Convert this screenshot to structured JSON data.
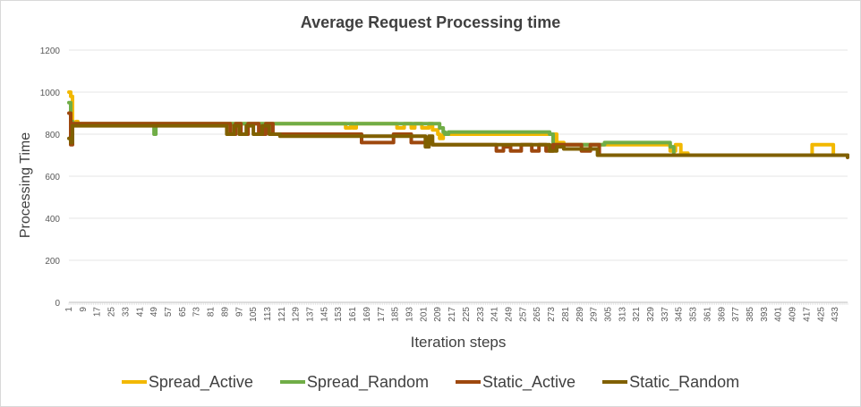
{
  "chart_data": {
    "type": "line",
    "title": "Average Request Processing time",
    "xlabel": "Iteration steps",
    "ylabel": "Processing Time",
    "ylim": [
      0,
      1200
    ],
    "xlim": [
      1,
      440
    ],
    "y_ticks": [
      0,
      200,
      400,
      600,
      800,
      1000,
      1200
    ],
    "x_ticks": [
      1,
      9,
      17,
      25,
      33,
      41,
      49,
      57,
      65,
      73,
      81,
      89,
      97,
      105,
      113,
      121,
      129,
      137,
      145,
      153,
      161,
      169,
      177,
      185,
      193,
      201,
      209,
      217,
      225,
      233,
      241,
      249,
      257,
      265,
      273,
      281,
      289,
      297,
      305,
      313,
      321,
      329,
      337,
      345,
      353,
      361,
      369,
      377,
      385,
      393,
      401,
      409,
      417,
      425,
      433
    ],
    "grid": true,
    "legend_position": "bottom",
    "series": [
      {
        "name": "Spread_Active",
        "color": "#f2b800",
        "points": [
          [
            1,
            1000
          ],
          [
            2,
            980
          ],
          [
            3,
            850
          ],
          [
            5,
            860
          ],
          [
            6,
            850
          ],
          [
            120,
            850
          ],
          [
            155,
            850
          ],
          [
            157,
            830
          ],
          [
            160,
            850
          ],
          [
            161,
            830
          ],
          [
            163,
            850
          ],
          [
            185,
            850
          ],
          [
            186,
            830
          ],
          [
            190,
            850
          ],
          [
            194,
            830
          ],
          [
            196,
            850
          ],
          [
            200,
            830
          ],
          [
            204,
            850
          ],
          [
            206,
            820
          ],
          [
            209,
            800
          ],
          [
            210,
            780
          ],
          [
            212,
            800
          ],
          [
            273,
            800
          ],
          [
            276,
            760
          ],
          [
            280,
            750
          ],
          [
            338,
            750
          ],
          [
            340,
            720
          ],
          [
            343,
            750
          ],
          [
            346,
            710
          ],
          [
            350,
            700
          ],
          [
            416,
            700
          ],
          [
            420,
            750
          ],
          [
            428,
            750
          ],
          [
            432,
            700
          ],
          [
            440,
            700
          ]
        ]
      },
      {
        "name": "Spread_Random",
        "color": "#70ad47",
        "points": [
          [
            1,
            950
          ],
          [
            2,
            860
          ],
          [
            3,
            850
          ],
          [
            48,
            850
          ],
          [
            49,
            800
          ],
          [
            50,
            850
          ],
          [
            120,
            850
          ],
          [
            208,
            850
          ],
          [
            210,
            830
          ],
          [
            212,
            810
          ],
          [
            213,
            800
          ],
          [
            215,
            810
          ],
          [
            272,
            800
          ],
          [
            274,
            750
          ],
          [
            300,
            750
          ],
          [
            303,
            760
          ],
          [
            338,
            760
          ],
          [
            340,
            740
          ],
          [
            342,
            700
          ],
          [
            440,
            700
          ]
        ]
      },
      {
        "name": "Static_Active",
        "color": "#9e480e",
        "points": [
          [
            1,
            900
          ],
          [
            2,
            750
          ],
          [
            3,
            850
          ],
          [
            90,
            850
          ],
          [
            92,
            800
          ],
          [
            95,
            850
          ],
          [
            98,
            800
          ],
          [
            102,
            850
          ],
          [
            108,
            800
          ],
          [
            112,
            850
          ],
          [
            116,
            800
          ],
          [
            120,
            800
          ],
          [
            164,
            800
          ],
          [
            166,
            760
          ],
          [
            182,
            760
          ],
          [
            184,
            800
          ],
          [
            192,
            800
          ],
          [
            194,
            760
          ],
          [
            204,
            760
          ],
          [
            206,
            750
          ],
          [
            240,
            750
          ],
          [
            242,
            720
          ],
          [
            246,
            740
          ],
          [
            250,
            720
          ],
          [
            256,
            750
          ],
          [
            262,
            720
          ],
          [
            266,
            750
          ],
          [
            270,
            720
          ],
          [
            274,
            750
          ],
          [
            280,
            750
          ],
          [
            290,
            720
          ],
          [
            295,
            750
          ],
          [
            300,
            700
          ],
          [
            440,
            690
          ]
        ]
      },
      {
        "name": "Static_Random",
        "color": "#806000",
        "points": [
          [
            1,
            780
          ],
          [
            2,
            760
          ],
          [
            3,
            840
          ],
          [
            88,
            840
          ],
          [
            90,
            800
          ],
          [
            94,
            840
          ],
          [
            97,
            800
          ],
          [
            101,
            840
          ],
          [
            105,
            800
          ],
          [
            110,
            840
          ],
          [
            114,
            800
          ],
          [
            120,
            790
          ],
          [
            200,
            790
          ],
          [
            202,
            740
          ],
          [
            204,
            790
          ],
          [
            206,
            750
          ],
          [
            270,
            750
          ],
          [
            272,
            720
          ],
          [
            276,
            740
          ],
          [
            280,
            730
          ],
          [
            296,
            730
          ],
          [
            299,
            700
          ],
          [
            440,
            690
          ]
        ]
      }
    ]
  }
}
